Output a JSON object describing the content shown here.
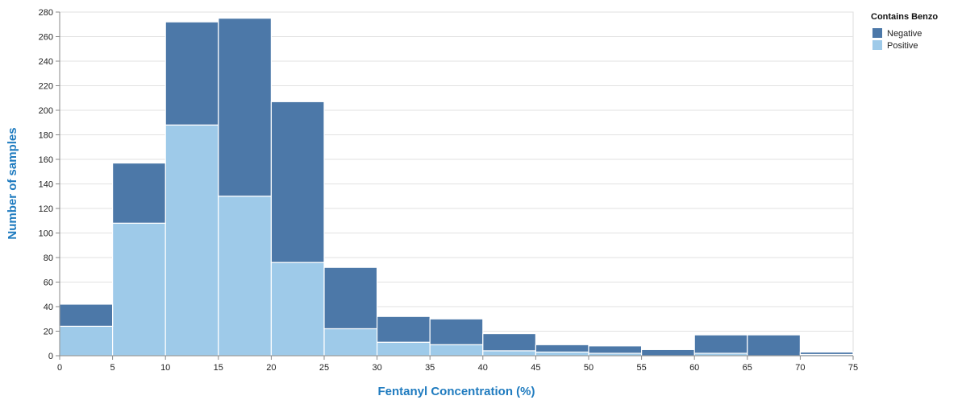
{
  "chart_data": {
    "type": "bar",
    "stacked": true,
    "xlabel": "Fentanyl Concentration (%)",
    "ylabel": "Number of samples",
    "ylim": [
      0,
      280
    ],
    "yticks": [
      0,
      20,
      40,
      60,
      80,
      100,
      120,
      140,
      160,
      180,
      200,
      220,
      240,
      260,
      280
    ],
    "xlim": [
      0,
      75
    ],
    "xticks": [
      0,
      5,
      10,
      15,
      20,
      25,
      30,
      35,
      40,
      45,
      50,
      55,
      60,
      65,
      70,
      75
    ],
    "bins": [
      [
        0,
        5
      ],
      [
        5,
        10
      ],
      [
        10,
        15
      ],
      [
        15,
        20
      ],
      [
        20,
        25
      ],
      [
        25,
        30
      ],
      [
        30,
        35
      ],
      [
        35,
        40
      ],
      [
        40,
        45
      ],
      [
        45,
        50
      ],
      [
        50,
        55
      ],
      [
        55,
        60
      ],
      [
        60,
        65
      ],
      [
        65,
        70
      ],
      [
        70,
        75
      ]
    ],
    "grid": true,
    "legend": {
      "title": "Contains Benzo",
      "position": "top-right"
    },
    "series": [
      {
        "name": "Positive",
        "color": "#9ecae9",
        "values": [
          24,
          108,
          188,
          130,
          76,
          22,
          11,
          9,
          4,
          3,
          2,
          0,
          2,
          0,
          1
        ]
      },
      {
        "name": "Negative",
        "color": "#4c78a8",
        "values": [
          18,
          49,
          84,
          145,
          131,
          50,
          21,
          21,
          14,
          6,
          6,
          5,
          15,
          17,
          2
        ]
      }
    ]
  }
}
